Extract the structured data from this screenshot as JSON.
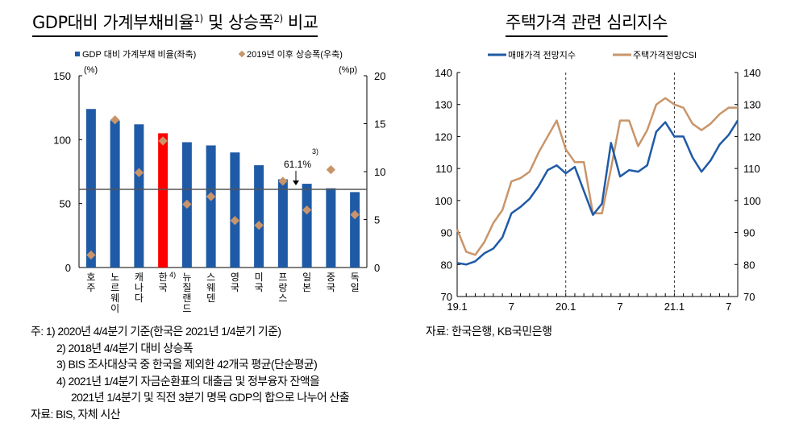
{
  "left_title": {
    "text": "GDP대비 가계부채비율",
    "sup1": "1)",
    "mid": " 및 상승폭",
    "sup2": "2)",
    "end": " 비교"
  },
  "right_title": "주택가격 관련 심리지수",
  "chart_data": [
    {
      "type": "bar",
      "categories": [
        "호주",
        "노르웨이",
        "캐나다",
        "한국",
        "뉴질랜드",
        "스웨덴",
        "영국",
        "미국",
        "프랑스",
        "일본",
        "중국",
        "독일"
      ],
      "category_note": {
        "한국": "4)"
      },
      "series": [
        {
          "name": "GDP 대비 가계부채 비율(좌축)",
          "axis": "left",
          "type": "bar",
          "values": [
            124,
            115,
            112,
            105,
            98,
            95.5,
            90,
            80,
            69,
            65.5,
            62,
            59
          ],
          "color": "#1f5aa6",
          "highlight": {
            "한국": "#ff0000"
          }
        },
        {
          "name": "2019년 이후 상승폭(우축)",
          "axis": "right",
          "type": "scatter",
          "marker": "diamond",
          "values": [
            1.3,
            15.4,
            9.9,
            13.2,
            6.6,
            7.4,
            4.9,
            4.4,
            9.0,
            6.0,
            10.2,
            5.5
          ],
          "color": "#c8956a"
        }
      ],
      "reference_line": {
        "value": 61.1,
        "label": "61.1%",
        "note": "3)"
      },
      "left_axis": {
        "unit": "(%)",
        "range": [
          0,
          150
        ],
        "ticks": [
          0,
          50,
          100,
          150
        ]
      },
      "right_axis": {
        "unit": "(%p)",
        "range": [
          0,
          20
        ],
        "ticks": [
          0,
          5,
          10,
          15,
          20
        ]
      },
      "legend": "top"
    },
    {
      "type": "line",
      "x_ticks": [
        "19.1",
        "7",
        "20.1",
        "7",
        "21.1",
        "7"
      ],
      "x_start": "2019-01",
      "x_end": "2021-08",
      "series": [
        {
          "name": "매매가격 전망지수",
          "color": "#1f5aa6",
          "values": [
            80.5,
            80,
            81,
            83.5,
            85,
            88.5,
            96,
            98,
            100.5,
            104.5,
            109.5,
            111,
            108.5,
            110.5,
            103,
            95.5,
            99,
            118,
            107.5,
            109.5,
            109,
            111,
            121.5,
            124.5,
            120,
            120,
            113.5,
            109,
            112.5,
            117.5,
            120.5,
            125
          ]
        },
        {
          "name": "주택가격전망CSI",
          "color": "#c8956a",
          "values": [
            91,
            84,
            83,
            87,
            93,
            97,
            106,
            107,
            109,
            115,
            120,
            125,
            116,
            112,
            112,
            96,
            96,
            110,
            125,
            125,
            117,
            122,
            130,
            132,
            130,
            129,
            124,
            122,
            124,
            127,
            129,
            129
          ]
        }
      ],
      "y_range": [
        70,
        140
      ],
      "y_ticks": [
        70,
        80,
        90,
        100,
        110,
        120,
        130,
        140
      ],
      "dashed_verticals": [
        "20.1",
        "21.1"
      ],
      "legend": "top"
    }
  ],
  "notes": [
    "주: 1) 2020년 4/4분기 기준(한국은 2021년 1/4분기 기준)",
    "2) 2018년 4/4분기 대비 상승폭",
    "3) BIS 조사대상국 중 한국을 제외한 42개국 평균(단순평균)",
    "4) 2021년 1/4분기 자금순환표의 대출금 및 정부융자 잔액을",
    "2021년 1/4분기 및 직전 3분기 명목 GDP의 합으로 나누어 산출",
    "자료: BIS, 자체 시산"
  ],
  "right_source": "자료: 한국은행, KB국민은행"
}
